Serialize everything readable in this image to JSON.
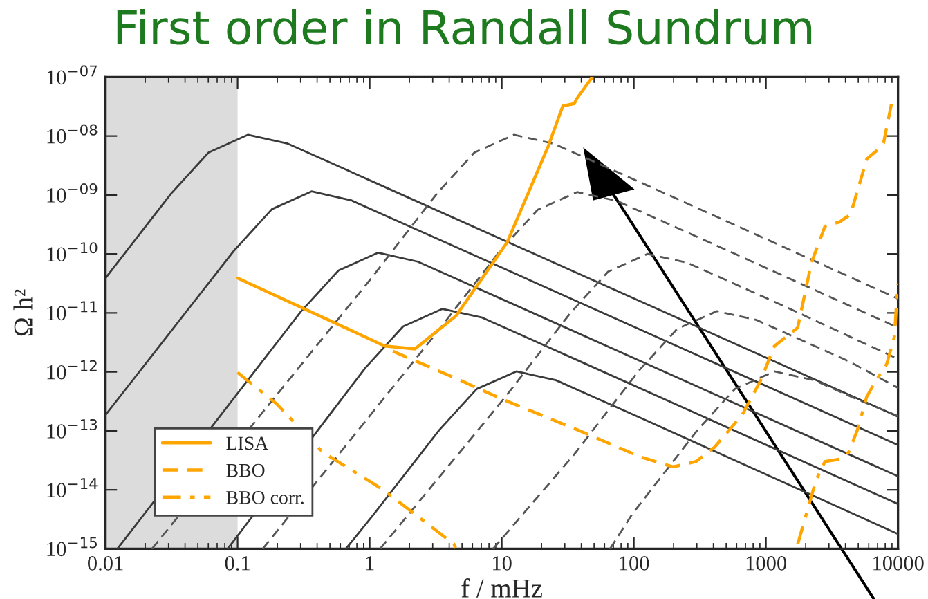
{
  "chart_data": {
    "type": "line",
    "title": "First order in Randall Sundrum",
    "xlabel": "f / mHz",
    "ylabel": "Ω h²",
    "log": "xy",
    "xlim": [
      0.01,
      10000
    ],
    "ylim": [
      1e-15,
      1e-07
    ],
    "xticks": [
      0.01,
      0.1,
      1,
      10,
      100,
      1000,
      10000
    ],
    "yticks": [
      {
        "value": 1e-15,
        "label": "10$^{−15}$"
      },
      {
        "value": 1e-14,
        "label": "10$^{−14}$"
      },
      {
        "value": 1e-13,
        "label": "10$^{−13}$"
      },
      {
        "value": 1e-12,
        "label": "10$^{−12}$"
      },
      {
        "value": 1e-11,
        "label": "10$^{−11}$"
      },
      {
        "value": 1e-10,
        "label": "10$^{−10}$"
      },
      {
        "value": 1e-09,
        "label": "10$^{−09}$"
      },
      {
        "value": 1e-08,
        "label": "10$^{−08}$"
      },
      {
        "value": 1e-07,
        "label": "10$^{−07}$"
      }
    ],
    "bands": [
      {
        "axis": "x",
        "from": 0.01,
        "to": 0.1,
        "color": "#dcdcdc"
      }
    ],
    "grid": false,
    "legend": "bottom left",
    "series": [
      {
        "color": "#3a3a3a",
        "line_style": "solid",
        "x": [
          0.01,
          0.0313,
          0.0603,
          0.12,
          0.24,
          0.479,
          1.2,
          10000
        ],
        "values": [
          3.89e-11,
          1.05e-09,
          5.25e-09,
          1.05e-08,
          7.41e-09,
          3.72e-09,
          1.48e-09,
          1.74e-13
        ]
      },
      {
        "color": "#3a3a3a",
        "line_style": "solid",
        "x": [
          0.01,
          0.0944,
          0.182,
          0.363,
          0.724,
          1.445,
          3.63,
          10000
        ],
        "values": [
          1.86e-13,
          1.15e-10,
          5.75e-10,
          1.15e-09,
          8.13e-10,
          4.07e-10,
          1.62e-10,
          5.75e-14
        ]
      },
      {
        "color": "#3a3a3a",
        "line_style": "solid",
        "x": [
          0.0123,
          0.0964,
          0.301,
          0.581,
          1.16,
          2.31,
          4.61,
          11.6,
          10000
        ],
        "values": [
          1e-15,
          3.89e-13,
          1.05e-11,
          5.25e-11,
          1.05e-10,
          7.41e-11,
          3.72e-11,
          1.48e-11,
          1.7e-14
        ]
      },
      {
        "color": "#3a3a3a",
        "line_style": "solid",
        "x": [
          0.0841,
          0.927,
          1.79,
          3.56,
          7.11,
          14.2,
          35.6,
          10000
        ],
        "values": [
          1e-15,
          1.17e-12,
          5.89e-12,
          1.17e-11,
          8.32e-12,
          4.17e-12,
          1.66e-12,
          5.75e-15
        ]
      },
      {
        "color": "#3a3a3a",
        "line_style": "solid",
        "x": [
          0.66,
          1.07,
          3.35,
          6.46,
          12.9,
          25.7,
          51.3,
          129,
          10000
        ],
        "values": [
          1e-15,
          3.8e-15,
          1.02e-13,
          5.13e-13,
          1.02e-12,
          7.24e-13,
          3.63e-13,
          1.45e-13,
          1.78e-15
        ]
      },
      {
        "color": "#555555",
        "line_style": "dashed",
        "x": [
          0.0225,
          1.03,
          3.22,
          6.21,
          12.4,
          24.7,
          49.3,
          124,
          10000
        ],
        "values": [
          1e-15,
          3.89e-11,
          1.05e-09,
          5.25e-09,
          1.05e-08,
          7.41e-09,
          3.72e-09,
          1.48e-09,
          1.74e-11
        ]
      },
      {
        "color": "#555555",
        "line_style": "dashed",
        "x": [
          0.155,
          3.1,
          9.68,
          18.7,
          37.2,
          74.3,
          148,
          372,
          10000
        ],
        "values": [
          1e-15,
          4.17e-12,
          1.12e-10,
          5.62e-10,
          1.12e-09,
          7.94e-10,
          3.98e-10,
          1.58e-10,
          5.62e-12
        ]
      },
      {
        "color": "#555555",
        "line_style": "dashed",
        "x": [
          1.2,
          10.6,
          33.1,
          63.8,
          127,
          254,
          507,
          1270,
          10000
        ],
        "values": [
          1e-15,
          3.72e-13,
          1e-11,
          5.01e-11,
          1e-10,
          7.08e-11,
          3.55e-11,
          1.41e-11,
          1.66e-12
        ]
      },
      {
        "color": "#555555",
        "line_style": "dashed",
        "x": [
          8.6,
          35.3,
          110,
          213,
          425,
          847,
          1690,
          4250,
          10000
        ],
        "values": [
          1e-15,
          3.98e-14,
          1.07e-12,
          5.37e-12,
          1.07e-11,
          7.59e-12,
          3.8e-12,
          1.51e-12,
          5.37e-13
        ]
      },
      {
        "color": "#555555",
        "line_style": "dashed",
        "x": [
          66,
          96.6,
          302,
          582,
          1160,
          2320,
          4620,
          10000
        ],
        "values": [
          1e-15,
          3.8e-15,
          1.02e-13,
          5.13e-13,
          1.02e-12,
          7.24e-13,
          3.63e-13,
          1.78e-13
        ]
      },
      {
        "name": "LISA",
        "color": "#ffa500",
        "line_style": "solid",
        "x": [
          0.1,
          1.3,
          2.2,
          4.5,
          11,
          22.6,
          29,
          35.5,
          36.6,
          48.5
        ],
        "values": [
          3.89e-11,
          2.75e-12,
          2.45e-12,
          8.9e-12,
          1.58e-10,
          6.9e-09,
          3.24e-08,
          3.55e-08,
          4.17e-08,
          1e-07
        ]
      },
      {
        "name": "BBO",
        "color": "#ffa500",
        "line_style": "dashed",
        "x": [
          1.5,
          4.5,
          10,
          40,
          112,
          198,
          295,
          407,
          660,
          910,
          1160,
          1740,
          2210,
          2800,
          3600,
          4370,
          5800,
          6800,
          7770,
          9000,
          10000
        ],
        "values": [
          2.24e-12,
          7.76e-13,
          3.47e-13,
          9.77e-14,
          3.63e-14,
          2.45e-14,
          3.02e-14,
          5.25e-14,
          1.86e-13,
          7.08e-13,
          2.75e-12,
          5.62e-12,
          7.08e-11,
          2.95e-10,
          3.47e-10,
          4.68e-10,
          4.07e-09,
          5.5e-09,
          7.59e-09,
          3.89e-08,
          4.17e-08
        ]
      },
      {
        "name": "BBO corr.",
        "color": "#ffa500",
        "line_style": "dashdot",
        "x": [
          0.1,
          0.197,
          0.44,
          1.25,
          4.35,
          4.5,
          1700,
          1740,
          2400,
          2800,
          3600,
          4240,
          4950,
          5800,
          6800,
          8200,
          9400,
          9700,
          10000
        ],
        "values": [
          9.77e-13,
          2.88e-13,
          4.37e-14,
          1.02e-14,
          1.2e-15,
          1e-15,
          null,
          1.2e-15,
          1.48e-14,
          3.02e-14,
          3.31e-14,
          4.37e-14,
          1.07e-13,
          3.8e-13,
          7.08e-13,
          1.35e-12,
          3.98e-12,
          1.26e-11,
          3.16e-11
        ]
      }
    ]
  }
}
